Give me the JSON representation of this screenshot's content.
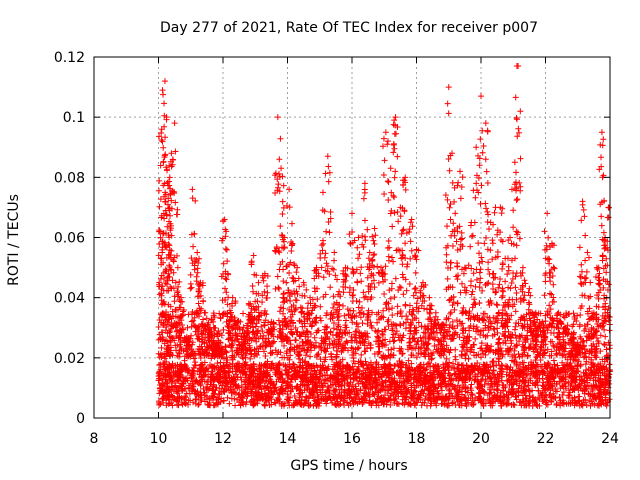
{
  "chart_data": {
    "type": "scatter",
    "title": "Day 277 of 2021, Rate Of TEC Index for receiver p007",
    "xlabel": "GPS time / hours",
    "ylabel": "ROTI / TECUs",
    "xlim": [
      8,
      24
    ],
    "ylim": [
      0,
      0.12
    ],
    "x_ticks": [
      8,
      10,
      12,
      14,
      16,
      18,
      20,
      22,
      24
    ],
    "y_ticks": [
      0,
      0.02,
      0.04,
      0.06,
      0.08,
      0.1,
      0.12
    ],
    "x_tick_labels": [
      "8",
      "10",
      "12",
      "14",
      "16",
      "18",
      "20",
      "22",
      "24"
    ],
    "y_tick_labels": [
      "0",
      "0.02",
      "0.04",
      "0.06",
      "0.08",
      "0.1",
      "0.12"
    ],
    "grid": true,
    "marker": "+",
    "color": "#ff0000",
    "series": [
      {
        "x": [
          10.05,
          10.1,
          10.15,
          10.2,
          10.25,
          10.3,
          10.35,
          10.4,
          10.5,
          10.6,
          10.7,
          10.9,
          11.05,
          11.2,
          11.3,
          11.45,
          11.6,
          11.75,
          11.9,
          12.05,
          12.15,
          12.3,
          12.45,
          12.65,
          12.8,
          12.95,
          13.1,
          13.3,
          13.5,
          13.7,
          13.8,
          13.9,
          14.05,
          14.15,
          14.3,
          14.5,
          14.7,
          14.9,
          15.1,
          15.25,
          15.45,
          15.6,
          15.8,
          16.0,
          16.2,
          16.4,
          16.55,
          16.7,
          16.9,
          17.05,
          17.2,
          17.35,
          17.5,
          17.65,
          17.85,
          18.0,
          18.2,
          18.4,
          18.6,
          18.8,
          19.0,
          19.1,
          19.2,
          19.35,
          19.5,
          19.7,
          19.85,
          20.0,
          20.15,
          20.3,
          20.45,
          20.6,
          20.75,
          20.9,
          21.05,
          21.15,
          21.3,
          21.5,
          21.7,
          21.9,
          22.05,
          22.2,
          22.4,
          22.6,
          22.8,
          23.0,
          23.15,
          23.3,
          23.5,
          23.65,
          23.75,
          23.85,
          23.95
        ],
        "y": [
          0.062,
          0.096,
          0.085,
          0.112,
          0.1,
          0.073,
          0.08,
          0.088,
          0.098,
          0.05,
          0.04,
          0.03,
          0.076,
          0.055,
          0.045,
          0.035,
          0.03,
          0.025,
          0.028,
          0.066,
          0.048,
          0.04,
          0.032,
          0.028,
          0.038,
          0.054,
          0.045,
          0.048,
          0.032,
          0.1,
          0.083,
          0.06,
          0.076,
          0.058,
          0.05,
          0.045,
          0.04,
          0.05,
          0.075,
          0.087,
          0.055,
          0.042,
          0.05,
          0.068,
          0.06,
          0.078,
          0.055,
          0.063,
          0.05,
          0.095,
          0.083,
          0.1,
          0.07,
          0.08,
          0.066,
          0.056,
          0.045,
          0.04,
          0.035,
          0.03,
          0.11,
          0.088,
          0.068,
          0.082,
          0.05,
          0.065,
          0.09,
          0.107,
          0.098,
          0.065,
          0.07,
          0.07,
          0.053,
          0.06,
          0.085,
          0.117,
          0.05,
          0.043,
          0.035,
          0.032,
          0.068,
          0.058,
          0.035,
          0.03,
          0.028,
          0.025,
          0.072,
          0.055,
          0.035,
          0.05,
          0.095,
          0.06,
          0.07
        ]
      }
    ],
    "cloud": {
      "x_start": 10.0,
      "x_end": 24.0,
      "floor": [
        0.004,
        0.018
      ],
      "mid": [
        0.012,
        0.035
      ]
    }
  }
}
